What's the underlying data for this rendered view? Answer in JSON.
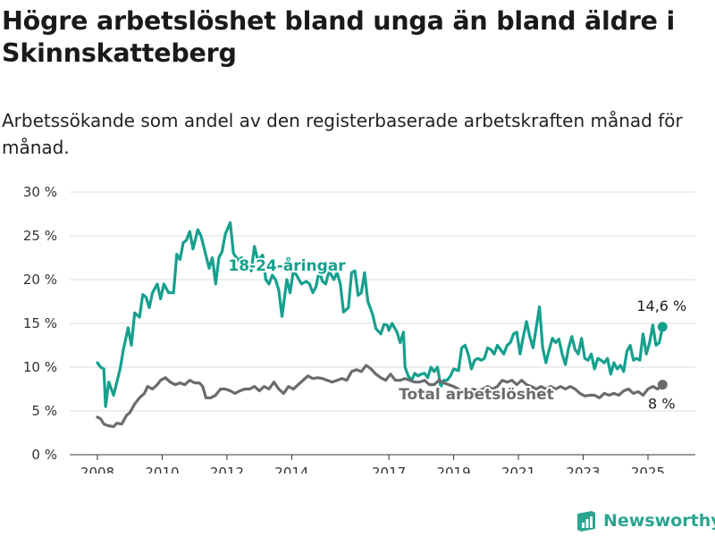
{
  "chart_data": {
    "type": "line",
    "title": "Högre arbetslöshet bland unga än bland äldre i Skinnskatteberg",
    "subtitle": "Arbetssökande som andel av den registerbaserade arbetskraften månad för månad.",
    "ylim": [
      0,
      30
    ],
    "y_ticks": [
      0,
      5,
      10,
      15,
      20,
      25,
      30
    ],
    "y_tick_labels": [
      "0 %",
      "5 %",
      "10 %",
      "15 %",
      "20 %",
      "25 %",
      "30 %"
    ],
    "xlim": [
      2008.0,
      2025.58
    ],
    "x_ticks": [
      2008,
      2010,
      2012,
      2014,
      2017,
      2019,
      2021,
      2023,
      2025
    ],
    "grid": "horizontal",
    "colors": {
      "youth": "#16a08e",
      "total": "#6b6b6f",
      "grid": "#dddddd",
      "axis": "#333333"
    },
    "series": [
      {
        "name": "18-24-åringar",
        "end_label": "14,6 %",
        "color": "#16a08e",
        "points": [
          [
            2008.0,
            10.5
          ],
          [
            2008.1,
            10.0
          ],
          [
            2008.2,
            9.8
          ],
          [
            2008.25,
            5.5
          ],
          [
            2008.35,
            8.3
          ],
          [
            2008.5,
            6.8
          ],
          [
            2008.7,
            9.8
          ],
          [
            2008.8,
            12.0
          ],
          [
            2008.95,
            14.5
          ],
          [
            2009.05,
            12.5
          ],
          [
            2009.15,
            16.2
          ],
          [
            2009.3,
            15.7
          ],
          [
            2009.4,
            18.3
          ],
          [
            2009.5,
            18.0
          ],
          [
            2009.6,
            16.8
          ],
          [
            2009.7,
            18.5
          ],
          [
            2009.85,
            19.5
          ],
          [
            2009.95,
            17.8
          ],
          [
            2010.05,
            19.5
          ],
          [
            2010.2,
            18.5
          ],
          [
            2010.35,
            18.5
          ],
          [
            2010.45,
            22.9
          ],
          [
            2010.55,
            22.3
          ],
          [
            2010.65,
            24.2
          ],
          [
            2010.75,
            24.5
          ],
          [
            2010.85,
            25.5
          ],
          [
            2010.95,
            23.5
          ],
          [
            2011.1,
            25.7
          ],
          [
            2011.2,
            25.0
          ],
          [
            2011.3,
            23.5
          ],
          [
            2011.45,
            21.3
          ],
          [
            2011.55,
            22.5
          ],
          [
            2011.65,
            19.5
          ],
          [
            2011.75,
            22.5
          ],
          [
            2011.85,
            23.2
          ],
          [
            2011.95,
            25.2
          ],
          [
            2012.1,
            26.5
          ],
          [
            2012.2,
            23.0
          ],
          [
            2012.35,
            22.2
          ],
          [
            2012.45,
            22.5
          ],
          [
            2012.55,
            22.0
          ],
          [
            2012.65,
            21.8
          ],
          [
            2012.75,
            21.0
          ],
          [
            2012.85,
            23.8
          ],
          [
            2012.95,
            22.2
          ],
          [
            2013.1,
            22.8
          ],
          [
            2013.2,
            20.0
          ],
          [
            2013.3,
            19.5
          ],
          [
            2013.4,
            20.5
          ],
          [
            2013.5,
            20.0
          ],
          [
            2013.6,
            18.8
          ],
          [
            2013.7,
            15.8
          ],
          [
            2013.85,
            20.0
          ],
          [
            2013.95,
            18.5
          ],
          [
            2014.05,
            21.0
          ],
          [
            2014.15,
            20.5
          ],
          [
            2014.3,
            19.5
          ],
          [
            2014.45,
            19.8
          ],
          [
            2014.55,
            19.5
          ],
          [
            2014.65,
            18.5
          ],
          [
            2014.75,
            19.2
          ],
          [
            2014.85,
            21.0
          ],
          [
            2014.95,
            19.8
          ],
          [
            2015.05,
            19.5
          ],
          [
            2015.15,
            21.0
          ],
          [
            2015.3,
            20.0
          ],
          [
            2015.4,
            20.8
          ],
          [
            2015.5,
            19.5
          ],
          [
            2015.6,
            16.3
          ],
          [
            2015.75,
            16.8
          ],
          [
            2015.85,
            20.8
          ],
          [
            2015.95,
            21.0
          ],
          [
            2016.05,
            18.2
          ],
          [
            2016.15,
            18.5
          ],
          [
            2016.25,
            20.8
          ],
          [
            2016.35,
            17.5
          ],
          [
            2016.5,
            16.0
          ],
          [
            2016.6,
            14.4
          ],
          [
            2016.75,
            13.8
          ],
          [
            2016.85,
            14.9
          ],
          [
            2016.95,
            14.8
          ],
          [
            2017.0,
            14.2
          ],
          [
            2017.1,
            15.0
          ],
          [
            2017.25,
            14.0
          ],
          [
            2017.35,
            12.8
          ],
          [
            2017.45,
            14.0
          ],
          [
            2017.5,
            10.0
          ],
          [
            2017.6,
            9.0
          ],
          [
            2017.7,
            8.5
          ],
          [
            2017.8,
            9.3
          ],
          [
            2017.9,
            9.0
          ],
          [
            2018.0,
            9.2
          ],
          [
            2018.1,
            9.3
          ],
          [
            2018.2,
            8.8
          ],
          [
            2018.3,
            10.0
          ],
          [
            2018.4,
            9.5
          ],
          [
            2018.5,
            10.0
          ],
          [
            2018.6,
            7.8
          ],
          [
            2018.7,
            8.5
          ],
          [
            2018.8,
            8.5
          ],
          [
            2018.9,
            9.0
          ],
          [
            2019.0,
            9.8
          ],
          [
            2019.15,
            9.6
          ],
          [
            2019.25,
            12.2
          ],
          [
            2019.35,
            12.5
          ],
          [
            2019.45,
            11.5
          ],
          [
            2019.55,
            9.8
          ],
          [
            2019.65,
            10.8
          ],
          [
            2019.75,
            11.0
          ],
          [
            2019.85,
            10.8
          ],
          [
            2019.95,
            11.0
          ],
          [
            2020.05,
            12.2
          ],
          [
            2020.15,
            12.0
          ],
          [
            2020.25,
            11.5
          ],
          [
            2020.35,
            12.5
          ],
          [
            2020.45,
            12.0
          ],
          [
            2020.55,
            11.5
          ],
          [
            2020.65,
            12.5
          ],
          [
            2020.75,
            12.8
          ],
          [
            2020.85,
            13.8
          ],
          [
            2020.95,
            14.0
          ],
          [
            2021.05,
            11.5
          ],
          [
            2021.15,
            13.5
          ],
          [
            2021.25,
            15.2
          ],
          [
            2021.35,
            13.5
          ],
          [
            2021.45,
            12.2
          ],
          [
            2021.55,
            14.5
          ],
          [
            2021.65,
            16.9
          ],
          [
            2021.75,
            12.2
          ],
          [
            2021.85,
            10.5
          ],
          [
            2021.95,
            12.0
          ],
          [
            2022.05,
            13.3
          ],
          [
            2022.15,
            12.8
          ],
          [
            2022.25,
            13.2
          ],
          [
            2022.35,
            11.5
          ],
          [
            2022.45,
            10.3
          ],
          [
            2022.55,
            12.2
          ],
          [
            2022.65,
            13.5
          ],
          [
            2022.75,
            12.0
          ],
          [
            2022.85,
            11.5
          ],
          [
            2022.95,
            13.3
          ],
          [
            2023.05,
            11.0
          ],
          [
            2023.15,
            10.8
          ],
          [
            2023.25,
            11.5
          ],
          [
            2023.35,
            9.8
          ],
          [
            2023.45,
            11.0
          ],
          [
            2023.55,
            10.8
          ],
          [
            2023.65,
            10.5
          ],
          [
            2023.75,
            11.0
          ],
          [
            2023.85,
            9.2
          ],
          [
            2023.95,
            10.5
          ],
          [
            2024.05,
            9.8
          ],
          [
            2024.15,
            10.2
          ],
          [
            2024.25,
            9.5
          ],
          [
            2024.35,
            11.8
          ],
          [
            2024.45,
            12.5
          ],
          [
            2024.55,
            10.8
          ],
          [
            2024.65,
            11.0
          ],
          [
            2024.75,
            10.8
          ],
          [
            2024.85,
            13.8
          ],
          [
            2024.95,
            11.5
          ],
          [
            2025.05,
            12.8
          ],
          [
            2025.15,
            14.8
          ],
          [
            2025.25,
            12.5
          ],
          [
            2025.35,
            12.8
          ],
          [
            2025.45,
            14.6
          ]
        ]
      },
      {
        "name": "Total arbetslöshet",
        "end_label": "8 %",
        "color": "#6b6b6f",
        "points": [
          [
            2008.0,
            4.3
          ],
          [
            2008.1,
            4.1
          ],
          [
            2008.2,
            3.5
          ],
          [
            2008.35,
            3.3
          ],
          [
            2008.5,
            3.2
          ],
          [
            2008.6,
            3.6
          ],
          [
            2008.75,
            3.5
          ],
          [
            2008.9,
            4.5
          ],
          [
            2009.0,
            4.8
          ],
          [
            2009.15,
            5.8
          ],
          [
            2009.3,
            6.5
          ],
          [
            2009.45,
            7.0
          ],
          [
            2009.55,
            7.8
          ],
          [
            2009.7,
            7.5
          ],
          [
            2009.85,
            8.0
          ],
          [
            2009.95,
            8.5
          ],
          [
            2010.1,
            8.8
          ],
          [
            2010.25,
            8.3
          ],
          [
            2010.4,
            8.0
          ],
          [
            2010.55,
            8.2
          ],
          [
            2010.7,
            8.0
          ],
          [
            2010.85,
            8.5
          ],
          [
            2011.0,
            8.2
          ],
          [
            2011.15,
            8.2
          ],
          [
            2011.25,
            7.8
          ],
          [
            2011.35,
            6.5
          ],
          [
            2011.5,
            6.5
          ],
          [
            2011.65,
            6.8
          ],
          [
            2011.8,
            7.5
          ],
          [
            2011.95,
            7.5
          ],
          [
            2012.1,
            7.3
          ],
          [
            2012.25,
            7.0
          ],
          [
            2012.4,
            7.3
          ],
          [
            2012.55,
            7.5
          ],
          [
            2012.7,
            7.5
          ],
          [
            2012.85,
            7.8
          ],
          [
            2013.0,
            7.3
          ],
          [
            2013.15,
            7.8
          ],
          [
            2013.3,
            7.5
          ],
          [
            2013.45,
            8.3
          ],
          [
            2013.6,
            7.5
          ],
          [
            2013.75,
            7.0
          ],
          [
            2013.9,
            7.8
          ],
          [
            2014.05,
            7.5
          ],
          [
            2014.2,
            8.0
          ],
          [
            2014.35,
            8.5
          ],
          [
            2014.5,
            9.0
          ],
          [
            2014.65,
            8.7
          ],
          [
            2014.8,
            8.8
          ],
          [
            2014.95,
            8.7
          ],
          [
            2015.1,
            8.5
          ],
          [
            2015.25,
            8.3
          ],
          [
            2015.4,
            8.5
          ],
          [
            2015.55,
            8.7
          ],
          [
            2015.7,
            8.5
          ],
          [
            2015.85,
            9.5
          ],
          [
            2016.0,
            9.7
          ],
          [
            2016.15,
            9.5
          ],
          [
            2016.3,
            10.2
          ],
          [
            2016.45,
            9.8
          ],
          [
            2016.6,
            9.2
          ],
          [
            2016.75,
            8.8
          ],
          [
            2016.9,
            8.5
          ],
          [
            2017.05,
            9.2
          ],
          [
            2017.2,
            8.5
          ],
          [
            2017.35,
            8.5
          ],
          [
            2017.5,
            8.7
          ],
          [
            2017.65,
            8.5
          ],
          [
            2017.8,
            8.3
          ],
          [
            2017.95,
            8.3
          ],
          [
            2018.1,
            8.5
          ],
          [
            2018.25,
            8.0
          ],
          [
            2018.4,
            8.0
          ],
          [
            2018.55,
            8.5
          ],
          [
            2018.7,
            8.2
          ],
          [
            2018.85,
            8.0
          ],
          [
            2019.0,
            7.8
          ],
          [
            2019.15,
            7.5
          ],
          [
            2019.3,
            7.0
          ],
          [
            2019.45,
            7.2
          ],
          [
            2019.6,
            7.5
          ],
          [
            2019.75,
            7.3
          ],
          [
            2019.9,
            7.5
          ],
          [
            2020.05,
            7.8
          ],
          [
            2020.2,
            7.5
          ],
          [
            2020.35,
            7.8
          ],
          [
            2020.5,
            8.5
          ],
          [
            2020.65,
            8.3
          ],
          [
            2020.8,
            8.5
          ],
          [
            2020.95,
            8.0
          ],
          [
            2021.1,
            8.5
          ],
          [
            2021.25,
            8.0
          ],
          [
            2021.4,
            7.8
          ],
          [
            2021.55,
            7.5
          ],
          [
            2021.7,
            7.8
          ],
          [
            2021.85,
            7.5
          ],
          [
            2022.0,
            7.8
          ],
          [
            2022.15,
            7.5
          ],
          [
            2022.3,
            7.8
          ],
          [
            2022.45,
            7.5
          ],
          [
            2022.6,
            7.8
          ],
          [
            2022.75,
            7.5
          ],
          [
            2022.9,
            7.0
          ],
          [
            2023.05,
            6.7
          ],
          [
            2023.2,
            6.8
          ],
          [
            2023.35,
            6.8
          ],
          [
            2023.5,
            6.5
          ],
          [
            2023.65,
            7.0
          ],
          [
            2023.8,
            6.8
          ],
          [
            2023.95,
            7.0
          ],
          [
            2024.1,
            6.8
          ],
          [
            2024.25,
            7.3
          ],
          [
            2024.4,
            7.5
          ],
          [
            2024.55,
            7.0
          ],
          [
            2024.7,
            7.2
          ],
          [
            2024.85,
            6.8
          ],
          [
            2025.0,
            7.5
          ],
          [
            2025.15,
            7.8
          ],
          [
            2025.3,
            7.5
          ],
          [
            2025.45,
            8.0
          ]
        ]
      }
    ]
  },
  "brand": {
    "name": "Newsworthy"
  }
}
